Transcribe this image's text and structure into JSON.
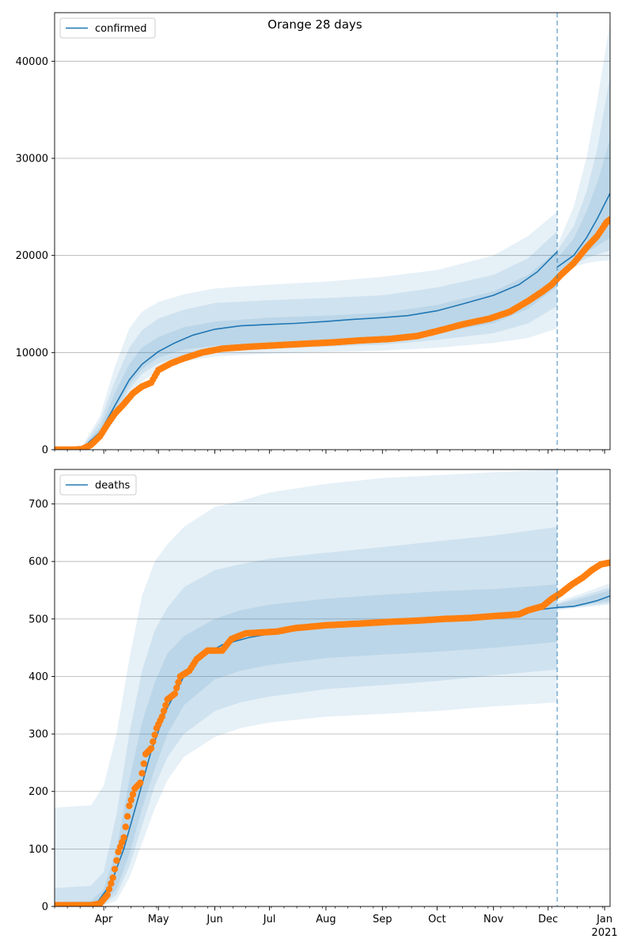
{
  "title": "Orange 28 days",
  "colors": {
    "model": "#1f77b4",
    "observed": "#ff7f0e",
    "band": "#1f77b4",
    "grid": "#b0b0b0",
    "forecast_line": "#1f77b4"
  },
  "x_axis": {
    "month_labels": [
      "Apr",
      "May",
      "Jun",
      "Jul",
      "Aug",
      "Sep",
      "Oct",
      "Nov",
      "Dec",
      "Jan"
    ],
    "year_label": "2021",
    "range": [
      "2020-03-05",
      "2021-01-04"
    ]
  },
  "forecast_start": "2020-12-06",
  "chart_data": [
    {
      "type": "line",
      "name": "confirmed",
      "legend": "confirmed",
      "legend_position": "top-left",
      "grid": "y",
      "ylim": [
        0,
        45000
      ],
      "yticks": [
        0,
        10000,
        20000,
        30000,
        40000
      ],
      "observed_points": [
        [
          "2020-03-05",
          0
        ],
        [
          "2020-03-15",
          0
        ],
        [
          "2020-03-20",
          50
        ],
        [
          "2020-03-25",
          500
        ],
        [
          "2020-03-30",
          1400
        ],
        [
          "2020-04-03",
          2600
        ],
        [
          "2020-04-07",
          3700
        ],
        [
          "2020-04-12",
          4700
        ],
        [
          "2020-04-17",
          5800
        ],
        [
          "2020-04-22",
          6500
        ],
        [
          "2020-04-27",
          6900
        ],
        [
          "2020-05-01",
          8200
        ],
        [
          "2020-05-08",
          8900
        ],
        [
          "2020-05-15",
          9400
        ],
        [
          "2020-05-25",
          10000
        ],
        [
          "2020-06-05",
          10400
        ],
        [
          "2020-06-20",
          10600
        ],
        [
          "2020-07-05",
          10750
        ],
        [
          "2020-07-20",
          10900
        ],
        [
          "2020-08-05",
          11050
        ],
        [
          "2020-08-20",
          11250
        ],
        [
          "2020-09-05",
          11400
        ],
        [
          "2020-09-20",
          11700
        ],
        [
          "2020-10-01",
          12200
        ],
        [
          "2020-10-15",
          12900
        ],
        [
          "2020-10-30",
          13500
        ],
        [
          "2020-11-10",
          14200
        ],
        [
          "2020-11-20",
          15300
        ],
        [
          "2020-11-28",
          16300
        ],
        [
          "2020-12-03",
          17000
        ],
        [
          "2020-12-08",
          18000
        ],
        [
          "2020-12-15",
          19200
        ],
        [
          "2020-12-22",
          20800
        ],
        [
          "2020-12-28",
          22000
        ],
        [
          "2021-01-02",
          23400
        ],
        [
          "2021-01-04",
          23700
        ]
      ],
      "model_points": [
        [
          "2020-03-05",
          0
        ],
        [
          "2020-03-20",
          100
        ],
        [
          "2020-03-30",
          1800
        ],
        [
          "2020-04-07",
          4500
        ],
        [
          "2020-04-15",
          7200
        ],
        [
          "2020-04-22",
          8800
        ],
        [
          "2020-05-01",
          10100
        ],
        [
          "2020-05-10",
          11000
        ],
        [
          "2020-05-20",
          11800
        ],
        [
          "2020-06-01",
          12400
        ],
        [
          "2020-06-15",
          12750
        ],
        [
          "2020-07-01",
          12900
        ],
        [
          "2020-07-15",
          13000
        ],
        [
          "2020-08-01",
          13200
        ],
        [
          "2020-08-15",
          13400
        ],
        [
          "2020-09-01",
          13600
        ],
        [
          "2020-09-15",
          13800
        ],
        [
          "2020-10-01",
          14300
        ],
        [
          "2020-10-15",
          15000
        ],
        [
          "2020-11-01",
          15900
        ],
        [
          "2020-11-15",
          17000
        ],
        [
          "2020-11-25",
          18300
        ],
        [
          "2020-12-06",
          20400
        ],
        [
          "2020-12-06",
          18800
        ],
        [
          "2020-12-15",
          20000
        ],
        [
          "2020-12-22",
          21800
        ],
        [
          "2020-12-28",
          23800
        ],
        [
          "2021-01-04",
          26400
        ]
      ],
      "bands": [
        [
          [
            "2020-03-05",
            0,
            0
          ],
          [
            "2020-03-20",
            0,
            300
          ],
          [
            "2020-03-30",
            1000,
            3500
          ],
          [
            "2020-04-07",
            3000,
            8500
          ],
          [
            "2020-04-15",
            5500,
            12500
          ],
          [
            "2020-04-22",
            7000,
            14200
          ],
          [
            "2020-05-01",
            8200,
            15200
          ],
          [
            "2020-05-15",
            9100,
            16000
          ],
          [
            "2020-06-01",
            9600,
            16600
          ],
          [
            "2020-07-01",
            9900,
            17000
          ],
          [
            "2020-08-01",
            10050,
            17300
          ],
          [
            "2020-09-01",
            10200,
            17800
          ],
          [
            "2020-10-01",
            10500,
            18500
          ],
          [
            "2020-11-01",
            11000,
            20000
          ],
          [
            "2020-11-20",
            11500,
            22000
          ],
          [
            "2020-12-06",
            12500,
            24500
          ],
          [
            "2020-12-06",
            17500,
            21000
          ],
          [
            "2020-12-15",
            18800,
            25000
          ],
          [
            "2020-12-22",
            19200,
            30000
          ],
          [
            "2020-12-28",
            19400,
            36000
          ],
          [
            "2021-01-04",
            19500,
            44000
          ]
        ],
        [
          [
            "2020-03-05",
            0,
            0
          ],
          [
            "2020-03-20",
            0,
            200
          ],
          [
            "2020-03-30",
            1300,
            2900
          ],
          [
            "2020-04-07",
            3500,
            7000
          ],
          [
            "2020-04-15",
            6200,
            10500
          ],
          [
            "2020-04-22",
            7800,
            12300
          ],
          [
            "2020-05-01",
            8900,
            13500
          ],
          [
            "2020-05-15",
            9700,
            14400
          ],
          [
            "2020-06-01",
            10200,
            15100
          ],
          [
            "2020-07-01",
            10400,
            15400
          ],
          [
            "2020-08-01",
            10600,
            15600
          ],
          [
            "2020-09-01",
            10800,
            15900
          ],
          [
            "2020-10-01",
            11300,
            16700
          ],
          [
            "2020-11-01",
            12000,
            18000
          ],
          [
            "2020-11-20",
            13000,
            19700
          ],
          [
            "2020-12-06",
            14800,
            22500
          ],
          [
            "2020-12-06",
            18000,
            20500
          ],
          [
            "2020-12-15",
            19000,
            23000
          ],
          [
            "2020-12-22",
            19700,
            26500
          ],
          [
            "2020-12-28",
            20100,
            31000
          ],
          [
            "2021-01-04",
            20500,
            38500
          ]
        ],
        [
          [
            "2020-03-05",
            0,
            0
          ],
          [
            "2020-03-20",
            50,
            150
          ],
          [
            "2020-03-30",
            1500,
            2300
          ],
          [
            "2020-04-07",
            4000,
            5800
          ],
          [
            "2020-04-15",
            6700,
            8800
          ],
          [
            "2020-04-22",
            8300,
            10500
          ],
          [
            "2020-05-01",
            9500,
            11600
          ],
          [
            "2020-05-15",
            10300,
            12600
          ],
          [
            "2020-06-01",
            10700,
            13200
          ],
          [
            "2020-07-01",
            10900,
            13600
          ],
          [
            "2020-08-01",
            11100,
            13800
          ],
          [
            "2020-09-01",
            11400,
            14100
          ],
          [
            "2020-10-01",
            12000,
            14900
          ],
          [
            "2020-11-01",
            13000,
            16300
          ],
          [
            "2020-11-20",
            14500,
            18000
          ],
          [
            "2020-12-06",
            16800,
            20500
          ],
          [
            "2020-12-06",
            18200,
            19700
          ],
          [
            "2020-12-15",
            19300,
            21700
          ],
          [
            "2020-12-22",
            20300,
            24500
          ],
          [
            "2020-12-28",
            21000,
            27500
          ],
          [
            "2021-01-04",
            21800,
            32000
          ]
        ]
      ]
    },
    {
      "type": "line",
      "name": "deaths",
      "legend": "deaths",
      "legend_position": "top-left",
      "grid": "y",
      "ylim": [
        0,
        760
      ],
      "yticks": [
        0,
        100,
        200,
        300,
        400,
        500,
        600,
        700
      ],
      "observed_points": [
        [
          "2020-03-05",
          2
        ],
        [
          "2020-03-25",
          2
        ],
        [
          "2020-03-30",
          5
        ],
        [
          "2020-04-03",
          20
        ],
        [
          "2020-04-06",
          50
        ],
        [
          "2020-04-09",
          95
        ],
        [
          "2020-04-12",
          120
        ],
        [
          "2020-04-15",
          175
        ],
        [
          "2020-04-18",
          205
        ],
        [
          "2020-04-21",
          215
        ],
        [
          "2020-04-24",
          265
        ],
        [
          "2020-04-27",
          275
        ],
        [
          "2020-04-30",
          310
        ],
        [
          "2020-05-03",
          330
        ],
        [
          "2020-05-06",
          360
        ],
        [
          "2020-05-10",
          370
        ],
        [
          "2020-05-13",
          400
        ],
        [
          "2020-05-18",
          410
        ],
        [
          "2020-05-22",
          430
        ],
        [
          "2020-05-28",
          445
        ],
        [
          "2020-06-05",
          445
        ],
        [
          "2020-06-10",
          465
        ],
        [
          "2020-06-18",
          475
        ],
        [
          "2020-07-05",
          478
        ],
        [
          "2020-07-15",
          484
        ],
        [
          "2020-08-01",
          489
        ],
        [
          "2020-08-20",
          492
        ],
        [
          "2020-09-05",
          495
        ],
        [
          "2020-09-20",
          497
        ],
        [
          "2020-10-05",
          500
        ],
        [
          "2020-10-20",
          502
        ],
        [
          "2020-11-01",
          505
        ],
        [
          "2020-11-15",
          508
        ],
        [
          "2020-11-20",
          515
        ],
        [
          "2020-11-28",
          522
        ],
        [
          "2020-12-03",
          535
        ],
        [
          "2020-12-08",
          545
        ],
        [
          "2020-12-14",
          560
        ],
        [
          "2020-12-20",
          572
        ],
        [
          "2020-12-25",
          585
        ],
        [
          "2020-12-30",
          595
        ],
        [
          "2021-01-04",
          598
        ]
      ],
      "model_points": [
        [
          "2020-03-05",
          0
        ],
        [
          "2020-03-28",
          5
        ],
        [
          "2020-04-05",
          40
        ],
        [
          "2020-04-12",
          100
        ],
        [
          "2020-04-20",
          190
        ],
        [
          "2020-04-27",
          270
        ],
        [
          "2020-05-05",
          340
        ],
        [
          "2020-05-15",
          400
        ],
        [
          "2020-05-25",
          435
        ],
        [
          "2020-06-05",
          455
        ],
        [
          "2020-06-20",
          468
        ],
        [
          "2020-07-05",
          476
        ],
        [
          "2020-07-20",
          482
        ],
        [
          "2020-08-05",
          487
        ],
        [
          "2020-08-20",
          491
        ],
        [
          "2020-09-05",
          494
        ],
        [
          "2020-09-20",
          497
        ],
        [
          "2020-10-05",
          501
        ],
        [
          "2020-10-20",
          505
        ],
        [
          "2020-11-05",
          509
        ],
        [
          "2020-11-20",
          514
        ],
        [
          "2020-12-06",
          520
        ],
        [
          "2020-12-15",
          522
        ],
        [
          "2020-12-22",
          527
        ],
        [
          "2020-12-28",
          532
        ],
        [
          "2021-01-04",
          540
        ]
      ],
      "bands": [
        [
          [
            "2020-03-05",
            0,
            172
          ],
          [
            "2020-03-25",
            0,
            176
          ],
          [
            "2020-04-01",
            2,
            210
          ],
          [
            "2020-04-08",
            10,
            300
          ],
          [
            "2020-04-15",
            50,
            430
          ],
          [
            "2020-04-22",
            110,
            540
          ],
          [
            "2020-04-29",
            170,
            600
          ],
          [
            "2020-05-06",
            220,
            630
          ],
          [
            "2020-05-15",
            260,
            660
          ],
          [
            "2020-06-01",
            295,
            695
          ],
          [
            "2020-06-15",
            310,
            705
          ],
          [
            "2020-07-01",
            320,
            720
          ],
          [
            "2020-08-01",
            330,
            735
          ],
          [
            "2020-09-01",
            335,
            745
          ],
          [
            "2020-10-01",
            340,
            750
          ],
          [
            "2020-11-01",
            348,
            755
          ],
          [
            "2020-12-06",
            355,
            760
          ],
          [
            "2020-12-06",
            515,
            530
          ],
          [
            "2020-12-20",
            520,
            545
          ],
          [
            "2021-01-04",
            525,
            562
          ]
        ],
        [
          [
            "2020-03-05",
            0,
            32
          ],
          [
            "2020-03-25",
            0,
            36
          ],
          [
            "2020-04-01",
            3,
            60
          ],
          [
            "2020-04-08",
            20,
            160
          ],
          [
            "2020-04-15",
            70,
            300
          ],
          [
            "2020-04-22",
            140,
            410
          ],
          [
            "2020-04-29",
            210,
            480
          ],
          [
            "2020-05-06",
            260,
            520
          ],
          [
            "2020-05-15",
            300,
            555
          ],
          [
            "2020-06-01",
            340,
            585
          ],
          [
            "2020-06-15",
            355,
            595
          ],
          [
            "2020-07-01",
            365,
            605
          ],
          [
            "2020-08-01",
            378,
            615
          ],
          [
            "2020-09-01",
            385,
            625
          ],
          [
            "2020-10-01",
            392,
            635
          ],
          [
            "2020-11-01",
            402,
            645
          ],
          [
            "2020-12-06",
            412,
            660
          ],
          [
            "2020-12-06",
            517,
            527
          ],
          [
            "2020-12-20",
            522,
            540
          ],
          [
            "2021-01-04",
            528,
            555
          ]
        ],
        [
          [
            "2020-03-05",
            0,
            8
          ],
          [
            "2020-03-25",
            0,
            10
          ],
          [
            "2020-04-01",
            4,
            30
          ],
          [
            "2020-04-08",
            30,
            100
          ],
          [
            "2020-04-15",
            90,
            220
          ],
          [
            "2020-04-22",
            170,
            320
          ],
          [
            "2020-04-29",
            240,
            390
          ],
          [
            "2020-05-06",
            300,
            440
          ],
          [
            "2020-05-15",
            350,
            470
          ],
          [
            "2020-06-01",
            395,
            500
          ],
          [
            "2020-06-15",
            410,
            515
          ],
          [
            "2020-07-01",
            420,
            525
          ],
          [
            "2020-08-01",
            432,
            535
          ],
          [
            "2020-09-01",
            438,
            542
          ],
          [
            "2020-10-01",
            443,
            548
          ],
          [
            "2020-11-01",
            450,
            552
          ],
          [
            "2020-12-06",
            460,
            560
          ],
          [
            "2020-12-06",
            518,
            525
          ],
          [
            "2020-12-20",
            524,
            536
          ],
          [
            "2021-01-04",
            532,
            550
          ]
        ]
      ]
    }
  ]
}
